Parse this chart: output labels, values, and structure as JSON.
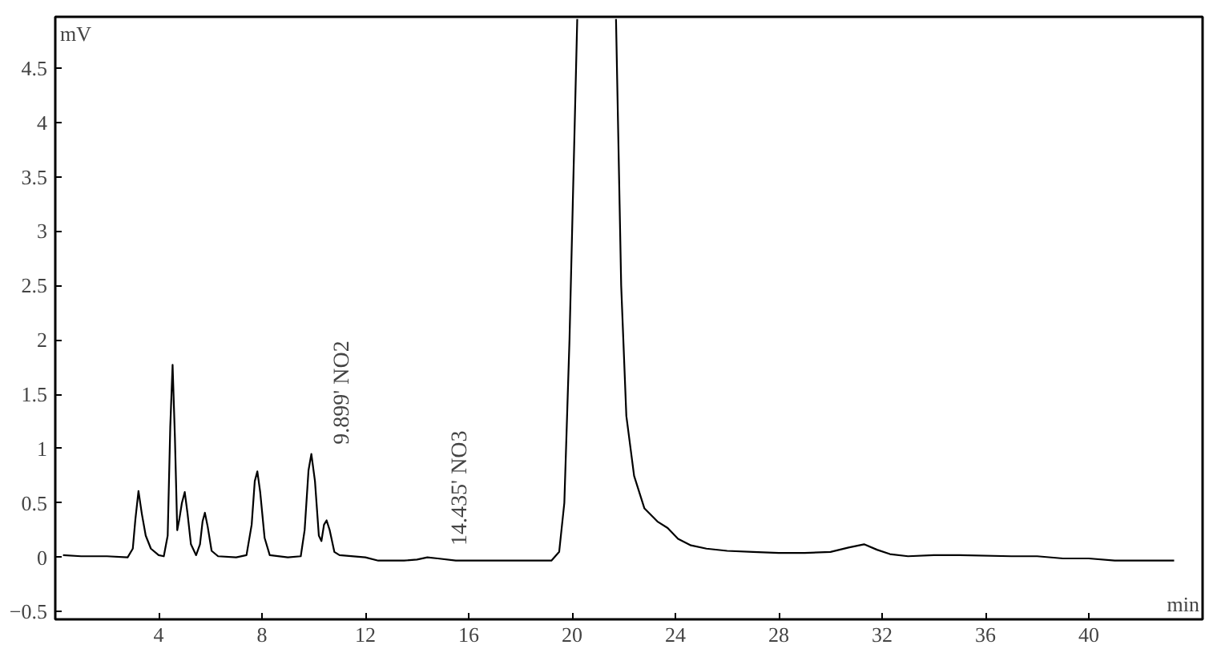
{
  "chart_data": {
    "type": "line",
    "xlabel": "min",
    "ylabel": "mV",
    "xlim": [
      0,
      44.4
    ],
    "ylim": [
      -0.57,
      4.97
    ],
    "xticks": [
      4,
      8,
      12,
      16,
      20,
      24,
      28,
      32,
      36,
      40
    ],
    "yticks": [
      -0.5,
      0,
      0.5,
      1,
      1.5,
      2,
      2.5,
      3,
      3.5,
      4,
      4.5
    ],
    "grid": false,
    "marker": "none",
    "line_style": "solid",
    "annotations": [
      {
        "text": "9.899' NO2",
        "x": 9.899,
        "y": 0.95
      },
      {
        "text": "14.435' NO3",
        "x": 14.435,
        "y": 0.02
      }
    ],
    "series": [
      {
        "color": "#000000",
        "x": [
          0.3,
          1,
          2,
          2.8,
          3.0,
          3.1,
          3.22,
          3.35,
          3.5,
          3.7,
          4.0,
          4.2,
          4.35,
          4.45,
          4.54,
          4.63,
          4.72,
          4.8,
          4.9,
          5.01,
          5.12,
          5.25,
          5.45,
          5.6,
          5.7,
          5.79,
          5.9,
          6.05,
          6.3,
          7.0,
          7.4,
          7.6,
          7.72,
          7.82,
          7.93,
          8.1,
          8.3,
          9.0,
          9.5,
          9.65,
          9.8,
          9.91,
          10.05,
          10.2,
          10.3,
          10.4,
          10.5,
          10.62,
          10.8,
          11.0,
          12,
          12.5,
          13.5,
          14.0,
          14.4,
          14.8,
          15.5,
          17,
          18.5,
          19.2,
          19.5,
          19.7,
          19.9,
          20.2,
          21.0,
          21.7,
          21.9,
          22.1,
          22.4,
          22.8,
          23.3,
          23.7,
          24.1,
          24.6,
          25.2,
          26,
          27,
          28,
          29,
          30,
          30.7,
          31.3,
          31.8,
          32.3,
          33,
          34,
          35,
          37,
          38,
          39,
          40,
          41,
          42,
          43.3
        ],
        "values": [
          0.02,
          0.01,
          0.01,
          0.0,
          0.08,
          0.35,
          0.61,
          0.4,
          0.2,
          0.08,
          0.02,
          0.01,
          0.2,
          1.2,
          1.77,
          1.1,
          0.25,
          0.35,
          0.5,
          0.6,
          0.4,
          0.12,
          0.02,
          0.12,
          0.33,
          0.41,
          0.28,
          0.06,
          0.01,
          0.0,
          0.02,
          0.3,
          0.7,
          0.79,
          0.6,
          0.18,
          0.02,
          0.0,
          0.01,
          0.25,
          0.8,
          0.95,
          0.7,
          0.2,
          0.15,
          0.3,
          0.34,
          0.25,
          0.05,
          0.02,
          0.0,
          -0.03,
          -0.03,
          -0.02,
          0.0,
          -0.01,
          -0.03,
          -0.03,
          -0.03,
          -0.03,
          0.05,
          0.5,
          2.0,
          4.95,
          null,
          4.95,
          2.5,
          1.3,
          0.75,
          0.45,
          0.33,
          0.27,
          0.17,
          0.11,
          0.08,
          0.06,
          0.05,
          0.04,
          0.04,
          0.05,
          0.09,
          0.12,
          0.07,
          0.03,
          0.01,
          0.02,
          0.02,
          0.01,
          0.01,
          -0.01,
          -0.01,
          -0.03,
          -0.03,
          -0.03
        ]
      }
    ]
  }
}
